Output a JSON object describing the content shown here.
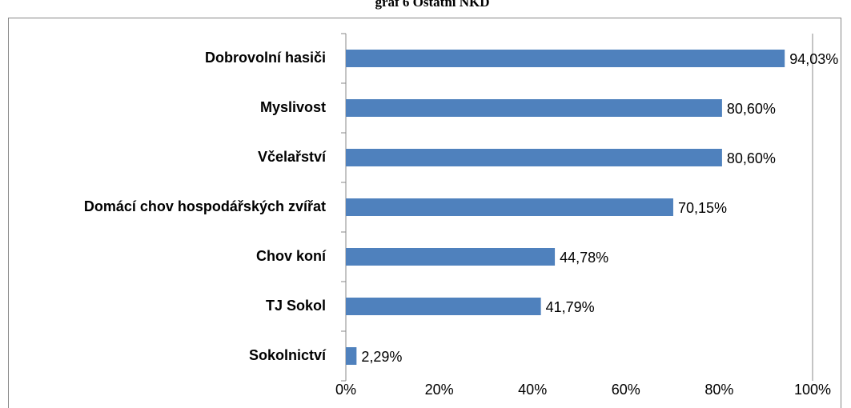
{
  "chart_data": {
    "type": "bar",
    "orientation": "horizontal",
    "title": "graf 6 Ostatní NKD",
    "categories": [
      "Dobrovolní hasiči",
      "Myslivost",
      "Včelařství",
      "Domácí chov hospodářských zvířat",
      "Chov koní",
      "TJ Sokol",
      "Sokolnictví"
    ],
    "values": [
      94.03,
      80.6,
      80.6,
      70.15,
      44.78,
      41.79,
      2.29
    ],
    "value_labels": [
      "94,03%",
      "80,60%",
      "80,60%",
      "70,15%",
      "44,78%",
      "41,79%",
      "2,29%"
    ],
    "color": "#4f81bd",
    "xlim": [
      0,
      100
    ],
    "xticks": [
      {
        "value": 0,
        "label": "0%"
      },
      {
        "value": 20,
        "label": "20%"
      },
      {
        "value": 40,
        "label": "40%"
      },
      {
        "value": 60,
        "label": "60%"
      },
      {
        "value": 80,
        "label": "80%"
      },
      {
        "value": 100,
        "label": "100%"
      }
    ]
  }
}
